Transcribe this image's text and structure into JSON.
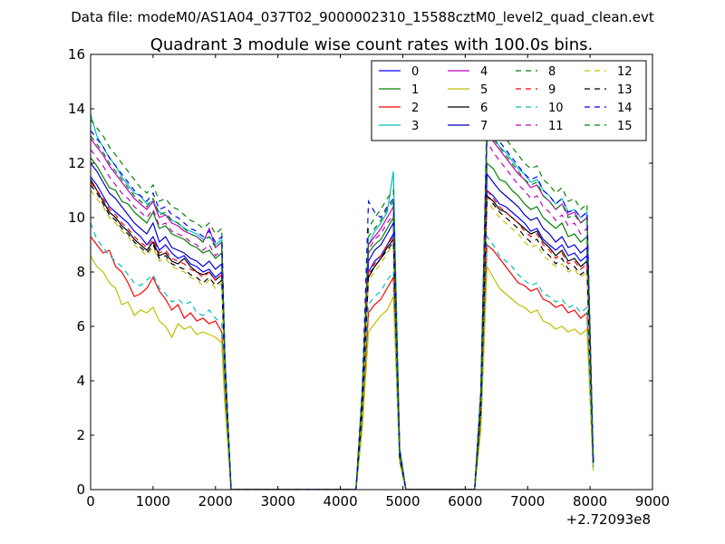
{
  "figure": {
    "suptitle": "Data file: modeM0/AS1A04_037T02_9000002310_15588cztM0_level2_quad_clean.evt"
  },
  "chart_data": {
    "type": "line",
    "title": "Quadrant 3 module wise count rates with 100.0s bins.",
    "xlabel": "",
    "ylabel": "",
    "x_offset_label": "+2.72093e8",
    "xlim": [
      0,
      9000
    ],
    "ylim": [
      0,
      16
    ],
    "xticks": [
      "0",
      "1000",
      "2000",
      "3000",
      "4000",
      "5000",
      "6000",
      "7000",
      "8000",
      "9000"
    ],
    "yticks": [
      "0",
      "2",
      "4",
      "6",
      "8",
      "10",
      "12",
      "14",
      "16"
    ],
    "grid": false,
    "legend_position": "top-right",
    "legend_columns": 4,
    "x": [
      0,
      100,
      200,
      300,
      400,
      500,
      600,
      700,
      800,
      900,
      1000,
      1100,
      1200,
      1300,
      1400,
      1500,
      1600,
      1700,
      1800,
      1900,
      2000,
      2100,
      2150,
      2250,
      2350,
      4250,
      4350,
      4450,
      4550,
      4650,
      4750,
      4850,
      4950,
      5050,
      6150,
      6250,
      6350,
      6450,
      6550,
      6650,
      6750,
      6850,
      6950,
      7050,
      7150,
      7250,
      7350,
      7450,
      7550,
      7650,
      7750,
      7850,
      7950,
      8050
    ],
    "series": [
      {
        "name": "0",
        "color": "#0000ff",
        "dash": "solid",
        "values": [
          11.5,
          11.2,
          10.8,
          10.4,
          10.2,
          10.0,
          9.8,
          9.5,
          9.3,
          9.0,
          9.3,
          8.8,
          9.0,
          8.7,
          8.5,
          8.6,
          8.3,
          8.2,
          8.0,
          8.1,
          7.8,
          8.0,
          4.5,
          0.0,
          0.0,
          0.0,
          3.0,
          8.0,
          8.4,
          8.6,
          9.0,
          9.4,
          1.3,
          0.0,
          0.0,
          3.0,
          11.0,
          10.8,
          10.5,
          10.4,
          10.2,
          10.0,
          9.8,
          9.5,
          9.6,
          9.2,
          9.0,
          8.8,
          9.0,
          8.6,
          8.7,
          8.4,
          8.6,
          1.0
        ]
      },
      {
        "name": "1",
        "color": "#008000",
        "dash": "solid",
        "values": [
          12.2,
          11.9,
          11.5,
          11.1,
          11.0,
          10.6,
          10.5,
          10.2,
          10.0,
          9.8,
          10.2,
          9.6,
          9.7,
          9.4,
          9.3,
          9.2,
          9.0,
          8.9,
          8.7,
          8.8,
          8.5,
          8.7,
          4.7,
          0.0,
          0.0,
          0.0,
          3.3,
          8.7,
          9.0,
          9.2,
          9.6,
          10.0,
          1.4,
          0.0,
          0.0,
          3.3,
          12.0,
          11.8,
          11.4,
          11.3,
          11.0,
          10.8,
          10.5,
          10.3,
          10.4,
          10.0,
          9.8,
          9.6,
          9.8,
          9.3,
          9.4,
          9.1,
          9.3,
          1.0
        ]
      },
      {
        "name": "2",
        "color": "#ff0000",
        "dash": "solid",
        "values": [
          9.3,
          9.0,
          8.7,
          8.8,
          8.2,
          8.0,
          7.6,
          7.1,
          7.2,
          7.4,
          7.8,
          7.3,
          7.0,
          6.6,
          6.8,
          6.3,
          6.5,
          6.2,
          6.3,
          6.1,
          6.2,
          5.8,
          3.5,
          0.0,
          0.0,
          0.0,
          2.6,
          6.5,
          6.8,
          7.0,
          7.4,
          7.8,
          1.1,
          0.0,
          0.0,
          2.6,
          9.0,
          8.8,
          8.5,
          8.2,
          7.9,
          7.6,
          7.5,
          7.3,
          7.4,
          7.0,
          6.9,
          6.7,
          6.8,
          6.5,
          6.6,
          6.3,
          6.5,
          0.8
        ]
      },
      {
        "name": "3",
        "color": "#00bfbf",
        "dash": "solid",
        "values": [
          13.8,
          13.0,
          12.6,
          12.2,
          11.9,
          11.5,
          11.2,
          10.9,
          10.8,
          10.5,
          10.6,
          10.2,
          10.1,
          9.9,
          9.8,
          9.6,
          9.5,
          9.4,
          9.2,
          9.3,
          9.0,
          9.2,
          4.9,
          0.0,
          0.0,
          0.0,
          3.6,
          9.0,
          9.5,
          9.8,
          10.2,
          11.7,
          1.5,
          0.0,
          0.0,
          3.6,
          13.5,
          13.0,
          12.6,
          12.4,
          12.1,
          11.8,
          11.6,
          11.3,
          11.4,
          11.0,
          10.8,
          10.5,
          10.7,
          10.2,
          10.3,
          10.0,
          10.2,
          1.1
        ]
      },
      {
        "name": "4",
        "color": "#bf00bf",
        "dash": "solid",
        "values": [
          12.9,
          12.6,
          12.3,
          11.9,
          11.6,
          11.3,
          11.0,
          10.7,
          10.5,
          10.3,
          10.6,
          10.0,
          10.1,
          9.8,
          9.7,
          9.5,
          9.4,
          9.3,
          9.1,
          9.6,
          8.9,
          9.1,
          4.8,
          0.0,
          0.0,
          0.0,
          3.5,
          9.0,
          9.3,
          9.6,
          10.0,
          10.4,
          1.4,
          0.0,
          0.0,
          3.5,
          13.2,
          12.8,
          12.5,
          12.2,
          11.9,
          11.6,
          11.4,
          11.1,
          11.2,
          10.8,
          10.6,
          10.3,
          10.5,
          10.1,
          10.2,
          9.8,
          10.0,
          1.1
        ]
      },
      {
        "name": "5",
        "color": "#bfbf00",
        "dash": "solid",
        "values": [
          8.6,
          8.2,
          8.0,
          7.6,
          7.4,
          6.8,
          6.9,
          6.4,
          6.6,
          6.5,
          6.7,
          6.2,
          6.0,
          5.6,
          6.1,
          5.9,
          6.0,
          5.7,
          5.8,
          5.7,
          5.6,
          5.4,
          3.1,
          0.0,
          0.0,
          0.0,
          2.2,
          5.8,
          6.1,
          6.4,
          6.6,
          7.1,
          1.0,
          0.0,
          0.0,
          2.2,
          8.2,
          7.8,
          7.4,
          7.2,
          7.0,
          6.8,
          6.7,
          6.5,
          6.6,
          6.2,
          6.1,
          5.9,
          6.0,
          5.8,
          5.9,
          5.7,
          5.9,
          0.7
        ]
      },
      {
        "name": "6",
        "color": "#000000",
        "dash": "solid",
        "values": [
          11.4,
          11.0,
          10.6,
          10.2,
          10.0,
          9.7,
          9.5,
          9.2,
          9.0,
          8.8,
          9.1,
          8.6,
          8.7,
          8.4,
          8.3,
          8.5,
          8.2,
          8.0,
          7.9,
          8.0,
          7.7,
          7.9,
          4.4,
          0.0,
          0.0,
          0.0,
          2.9,
          7.8,
          8.2,
          8.5,
          8.9,
          9.2,
          1.3,
          0.0,
          0.0,
          2.9,
          10.8,
          10.6,
          10.3,
          10.2,
          10.0,
          9.8,
          9.6,
          9.4,
          9.5,
          9.1,
          8.9,
          8.6,
          8.8,
          8.4,
          8.5,
          8.2,
          8.4,
          1.0
        ]
      },
      {
        "name": "7",
        "color": "#0000bf",
        "dash": "solid",
        "values": [
          12.0,
          11.7,
          11.3,
          10.9,
          10.7,
          10.4,
          10.1,
          9.8,
          9.6,
          9.4,
          9.8,
          9.1,
          9.3,
          8.9,
          8.8,
          8.7,
          8.5,
          8.4,
          8.2,
          8.4,
          8.1,
          8.3,
          4.6,
          0.0,
          0.0,
          0.0,
          3.1,
          8.4,
          8.8,
          9.0,
          9.4,
          9.8,
          1.3,
          0.0,
          0.0,
          3.1,
          11.6,
          11.3,
          11.0,
          10.8,
          10.6,
          10.4,
          10.1,
          9.9,
          10.0,
          9.6,
          9.4,
          9.1,
          9.3,
          8.9,
          9.0,
          8.7,
          8.9,
          1.0
        ]
      },
      {
        "name": "8",
        "color": "#008000",
        "dash": "dashed",
        "values": [
          13.6,
          13.3,
          13.0,
          12.6,
          12.3,
          12.0,
          11.7,
          11.4,
          11.1,
          10.9,
          11.2,
          10.6,
          10.7,
          10.4,
          10.3,
          10.1,
          9.9,
          9.8,
          9.6,
          9.8,
          9.4,
          9.6,
          5.0,
          0.0,
          0.0,
          0.0,
          3.7,
          9.6,
          10.0,
          10.3,
          10.7,
          11.0,
          1.5,
          0.0,
          0.0,
          3.7,
          14.0,
          13.6,
          13.2,
          12.9,
          12.6,
          12.3,
          12.0,
          11.8,
          11.9,
          11.4,
          11.2,
          10.9,
          11.1,
          10.6,
          10.7,
          10.3,
          10.5,
          1.1
        ]
      },
      {
        "name": "9",
        "color": "#ff0000",
        "dash": "dashed",
        "values": [
          11.3,
          11.0,
          10.7,
          10.3,
          10.1,
          9.8,
          9.6,
          9.3,
          9.1,
          8.9,
          9.2,
          8.7,
          8.8,
          8.5,
          8.4,
          8.3,
          8.1,
          8.0,
          7.8,
          8.0,
          7.7,
          7.9,
          4.4,
          0.0,
          0.0,
          0.0,
          3.0,
          8.0,
          8.3,
          8.6,
          9.0,
          9.3,
          1.3,
          0.0,
          0.0,
          3.0,
          11.0,
          10.7,
          10.4,
          10.2,
          10.0,
          9.8,
          9.5,
          9.3,
          9.4,
          9.0,
          8.8,
          8.5,
          8.7,
          8.3,
          8.4,
          8.1,
          8.3,
          1.0
        ]
      },
      {
        "name": "10",
        "color": "#00bfbf",
        "dash": "dashed",
        "values": [
          9.8,
          9.2,
          8.9,
          8.6,
          8.4,
          8.2,
          7.9,
          7.6,
          7.5,
          7.7,
          7.9,
          7.4,
          7.2,
          6.9,
          7.0,
          6.8,
          6.9,
          6.5,
          6.4,
          6.6,
          6.3,
          6.1,
          3.7,
          0.0,
          0.0,
          0.0,
          2.7,
          6.8,
          7.1,
          7.3,
          7.7,
          8.0,
          1.1,
          0.0,
          0.0,
          2.7,
          9.3,
          9.0,
          8.6,
          8.4,
          8.2,
          7.9,
          7.7,
          7.5,
          7.6,
          7.2,
          7.1,
          6.9,
          7.0,
          6.7,
          6.8,
          6.5,
          6.7,
          0.8
        ]
      },
      {
        "name": "11",
        "color": "#bf00bf",
        "dash": "dashed",
        "values": [
          12.5,
          12.2,
          11.9,
          11.5,
          11.2,
          10.9,
          10.7,
          10.4,
          10.2,
          10.0,
          10.3,
          9.7,
          9.8,
          9.5,
          9.4,
          9.3,
          9.1,
          9.0,
          8.8,
          9.0,
          8.6,
          8.8,
          4.8,
          0.0,
          0.0,
          0.0,
          3.4,
          8.8,
          9.2,
          9.4,
          9.8,
          10.1,
          1.4,
          0.0,
          0.0,
          3.4,
          12.8,
          12.4,
          12.1,
          11.8,
          11.5,
          11.2,
          11.0,
          10.7,
          10.8,
          10.4,
          10.2,
          9.9,
          10.1,
          9.7,
          9.8,
          9.4,
          9.6,
          1.0
        ]
      },
      {
        "name": "12",
        "color": "#bfbf00",
        "dash": "dashed",
        "values": [
          11.0,
          10.7,
          10.4,
          10.0,
          9.8,
          9.5,
          9.3,
          9.0,
          8.8,
          8.6,
          8.9,
          8.4,
          8.5,
          8.2,
          8.1,
          8.0,
          7.8,
          7.7,
          7.5,
          7.7,
          7.4,
          7.6,
          4.3,
          0.0,
          0.0,
          0.0,
          2.9,
          7.7,
          8.0,
          8.3,
          8.7,
          9.0,
          1.2,
          0.0,
          0.0,
          2.9,
          10.6,
          10.3,
          10.0,
          9.8,
          9.6,
          9.4,
          9.1,
          8.9,
          9.0,
          8.6,
          8.4,
          8.2,
          8.3,
          8.0,
          8.1,
          7.8,
          8.0,
          0.9
        ]
      },
      {
        "name": "13",
        "color": "#000000",
        "dash": "dashed",
        "values": [
          11.2,
          10.9,
          10.5,
          10.1,
          9.9,
          9.6,
          9.4,
          9.1,
          8.9,
          8.7,
          9.0,
          8.5,
          8.6,
          8.3,
          8.2,
          8.1,
          7.9,
          7.8,
          7.6,
          7.8,
          7.5,
          7.7,
          4.3,
          0.0,
          0.0,
          0.0,
          2.9,
          7.9,
          8.2,
          8.5,
          8.8,
          9.1,
          1.2,
          0.0,
          0.0,
          2.9,
          10.8,
          10.5,
          10.2,
          10.0,
          9.8,
          9.6,
          9.3,
          9.1,
          9.2,
          8.8,
          8.6,
          8.3,
          8.5,
          8.1,
          8.2,
          7.9,
          8.1,
          1.0
        ]
      },
      {
        "name": "14",
        "color": "#0000ff",
        "dash": "dashed",
        "values": [
          13.2,
          12.9,
          12.6,
          12.2,
          11.9,
          11.6,
          11.3,
          11.0,
          10.8,
          10.6,
          10.9,
          10.3,
          10.4,
          10.1,
          10.0,
          9.8,
          9.6,
          9.5,
          9.3,
          9.5,
          9.1,
          9.3,
          4.9,
          0.0,
          0.0,
          0.0,
          3.6,
          10.6,
          10.2,
          10.0,
          10.4,
          10.7,
          1.5,
          0.0,
          0.0,
          3.6,
          13.5,
          13.1,
          12.8,
          12.5,
          12.2,
          11.9,
          11.6,
          11.4,
          11.5,
          11.0,
          10.8,
          10.5,
          10.7,
          10.2,
          10.3,
          10.0,
          10.2,
          1.1
        ]
      },
      {
        "name": "15",
        "color": "#008000",
        "dash": "dashed",
        "values": [
          13.0,
          12.7,
          12.4,
          12.0,
          11.7,
          11.4,
          11.1,
          10.8,
          10.6,
          10.4,
          10.7,
          10.1,
          10.2,
          9.9,
          9.8,
          9.6,
          9.4,
          9.3,
          9.1,
          9.3,
          8.9,
          9.1,
          4.8,
          0.0,
          0.0,
          0.0,
          3.5,
          9.3,
          9.6,
          9.9,
          10.3,
          10.6,
          1.4,
          0.0,
          0.0,
          3.5,
          13.3,
          12.9,
          12.6,
          12.3,
          12.0,
          11.7,
          11.4,
          11.2,
          11.3,
          10.8,
          10.6,
          10.3,
          10.5,
          10.0,
          10.1,
          9.8,
          10.0,
          1.1
        ]
      }
    ]
  }
}
